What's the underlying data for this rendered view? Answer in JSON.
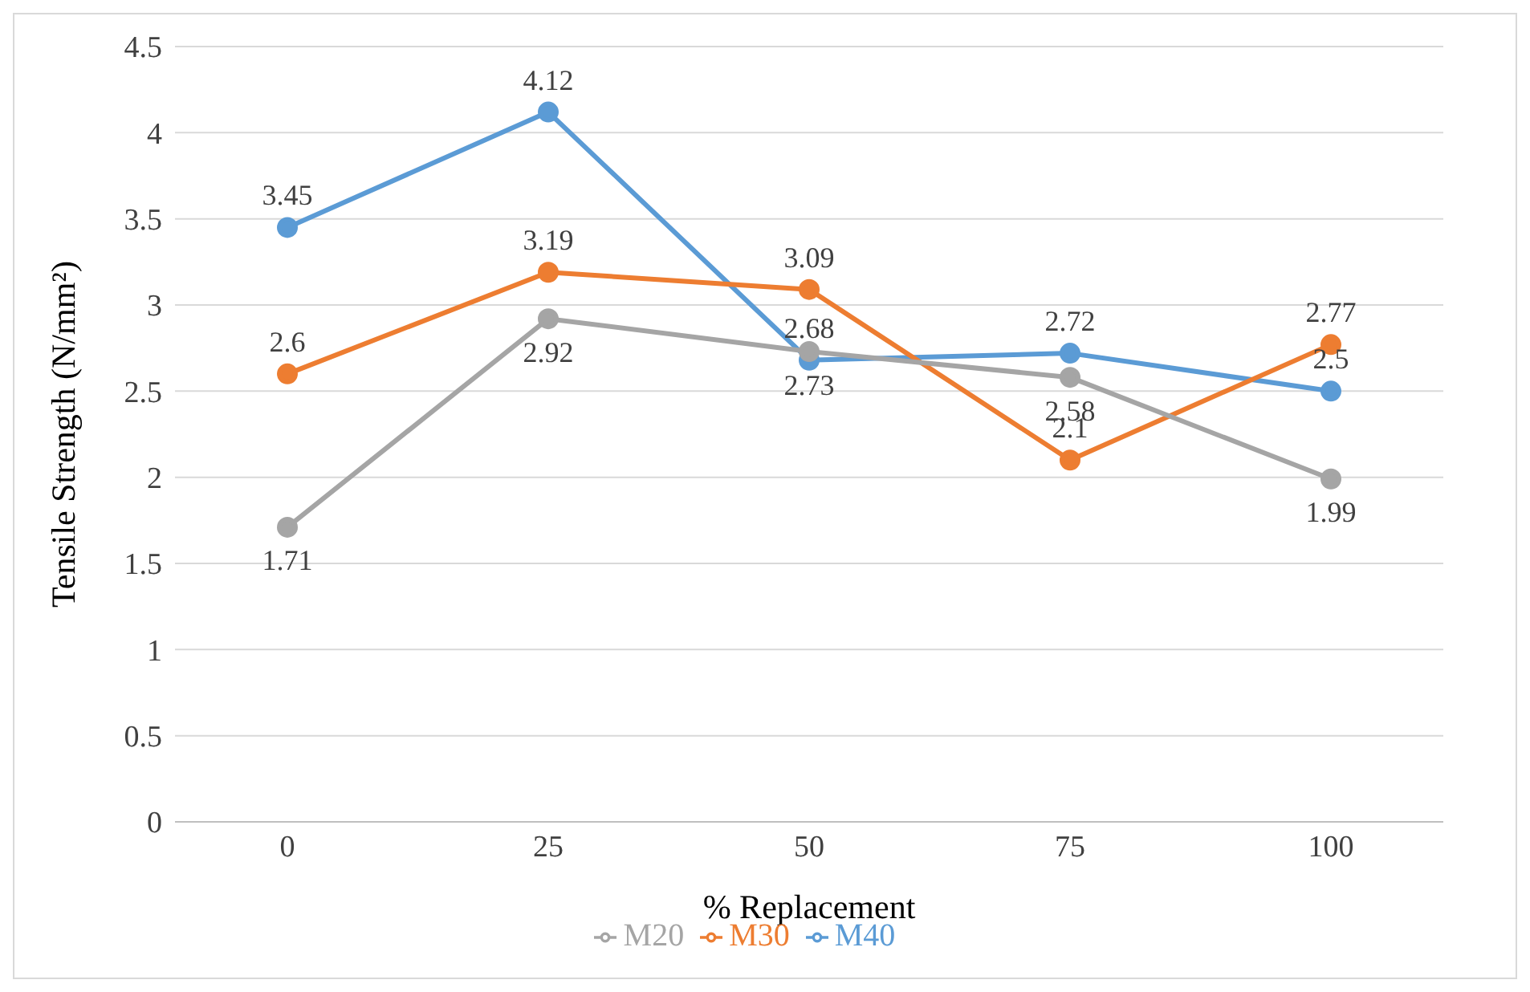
{
  "chart_data": {
    "type": "line",
    "xlabel": "% Replacement",
    "ylabel": "Tensile Strength (N/mm²)",
    "categories": [
      "0",
      "25",
      "50",
      "75",
      "100"
    ],
    "series": [
      {
        "name": "M40",
        "color": "#5b9bd5",
        "values": [
          3.45,
          4.12,
          2.68,
          2.72,
          2.5
        ]
      },
      {
        "name": "M30",
        "color": "#ed7d31",
        "values": [
          2.6,
          3.19,
          3.09,
          2.1,
          2.77
        ]
      },
      {
        "name": "M20",
        "color": "#a5a5a5",
        "values": [
          1.71,
          2.92,
          2.73,
          2.58,
          1.99
        ]
      }
    ],
    "ylim": [
      0,
      4.5
    ],
    "yticks": [
      0,
      0.5,
      1,
      1.5,
      2,
      2.5,
      3,
      3.5,
      4,
      4.5
    ],
    "grid": "y",
    "legend": "bottom",
    "marker": "circle",
    "line_style": "solid",
    "data_labels": true
  }
}
